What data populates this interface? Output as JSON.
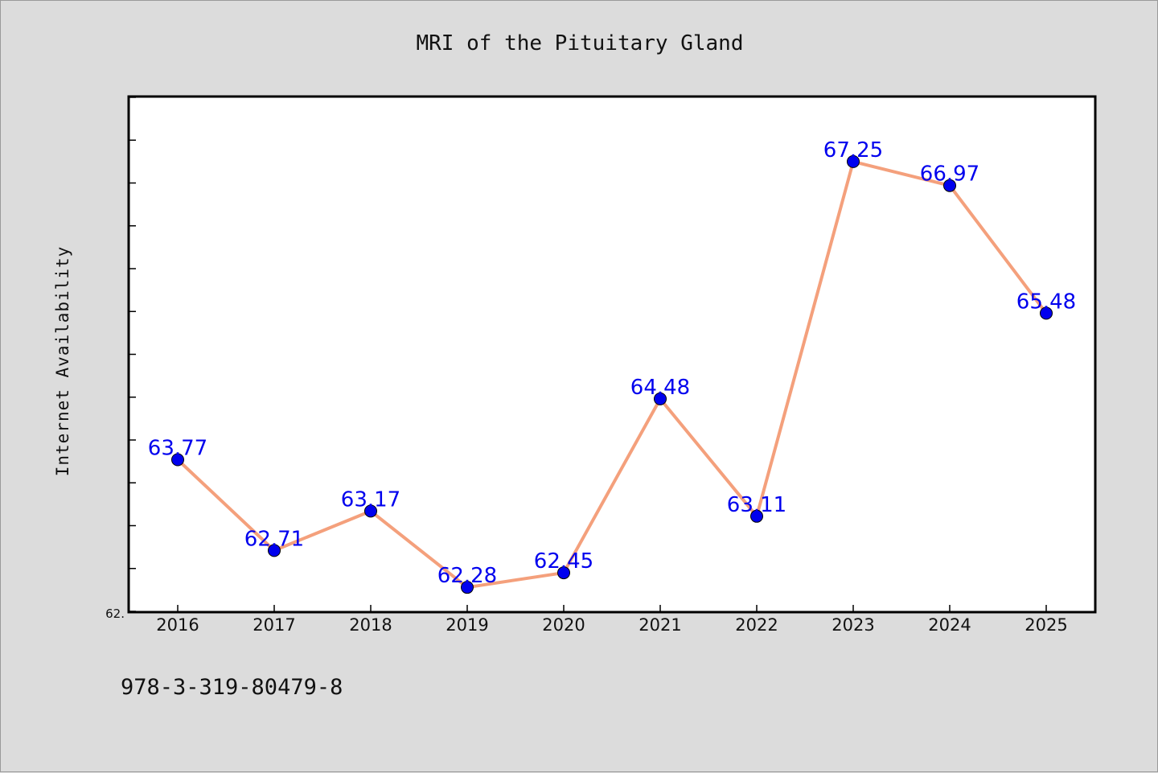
{
  "chart_data": {
    "type": "line",
    "title": "MRI of the Pituitary Gland",
    "xlabel": "",
    "ylabel": "Internet Availability",
    "categories": [
      "2016",
      "2017",
      "2018",
      "2019",
      "2020",
      "2021",
      "2022",
      "2023",
      "2024",
      "2025"
    ],
    "series": [
      {
        "values": [
          63.77,
          62.71,
          63.17,
          62.28,
          62.45,
          64.48,
          63.11,
          67.25,
          66.97,
          65.48
        ],
        "data_labels": [
          "63.77",
          "62.71",
          "63.17",
          "62.28",
          "62.45",
          "64.48",
          "63.11",
          "67.25",
          "66.97",
          "65.48"
        ],
        "line_color": "#f4a07c",
        "marker_color": "#0000ee",
        "label_color": "#0000ee"
      }
    ],
    "ylim": [
      62.0,
      68.0
    ],
    "y_tick_label": "62.",
    "grid": false,
    "legend": "none"
  },
  "footer_text": "978-3-319-80479-8",
  "colors": {
    "background": "#dcdcdc",
    "plot_background": "#ffffff",
    "axes": "#000000"
  }
}
